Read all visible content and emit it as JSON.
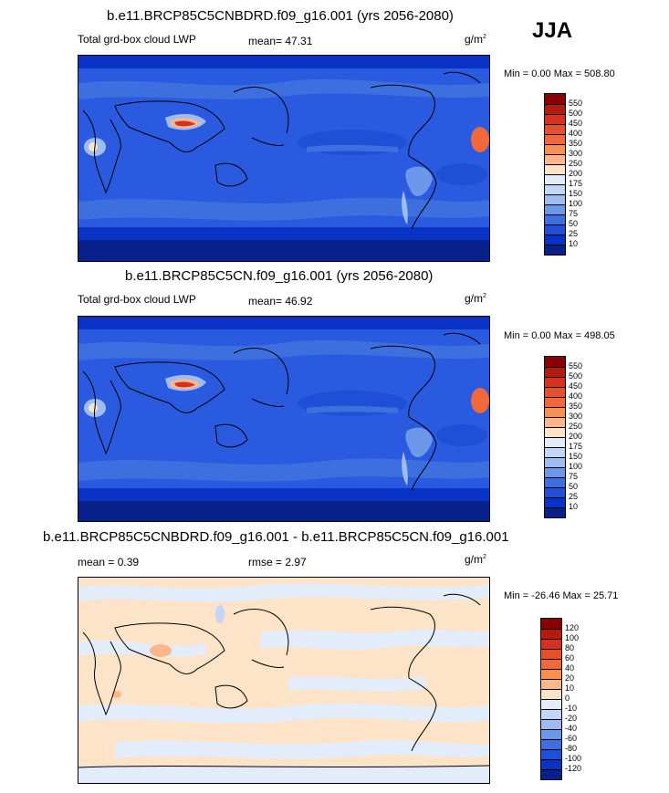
{
  "season": "JJA",
  "panels": [
    {
      "title": "b.e11.BRCP85C5CNBDRD.f09_g16.001 (yrs 2056-2080)",
      "left_label": "Total grd-box cloud LWP",
      "stat_label": "mean=",
      "stat_value": "47.31",
      "units": "g/m",
      "units_sup": "2",
      "minmax": "Min =   0.00 Max = 508.80",
      "colorbar": {
        "labels": [
          "550",
          "500",
          "450",
          "400",
          "350",
          "300",
          "250",
          "200",
          "175",
          "150",
          "100",
          "75",
          "50",
          "25",
          "10"
        ],
        "colors": [
          "#8b0000",
          "#b51b0a",
          "#d7301f",
          "#e8502b",
          "#f1683a",
          "#f8904f",
          "#fcb88c",
          "#fde3c8",
          "#e3ecfb",
          "#c3d6f7",
          "#9ebcf2",
          "#6d98ea",
          "#3e6fdf",
          "#1f4fd6",
          "#0a32c4",
          "#08208a"
        ]
      }
    },
    {
      "title": "b.e11.BRCP85C5CN.f09_g16.001 (yrs 2056-2080)",
      "left_label": "Total grd-box cloud LWP",
      "stat_label": "mean=",
      "stat_value": "46.92",
      "units": "g/m",
      "units_sup": "2",
      "minmax": "Min =   0.00 Max = 498.05",
      "colorbar": {
        "labels": [
          "550",
          "500",
          "450",
          "400",
          "350",
          "300",
          "250",
          "200",
          "175",
          "150",
          "100",
          "75",
          "50",
          "25",
          "10"
        ],
        "colors": [
          "#8b0000",
          "#b51b0a",
          "#d7301f",
          "#e8502b",
          "#f1683a",
          "#f8904f",
          "#fcb88c",
          "#fde3c8",
          "#e3ecfb",
          "#c3d6f7",
          "#9ebcf2",
          "#6d98ea",
          "#3e6fdf",
          "#1f4fd6",
          "#0a32c4",
          "#08208a"
        ]
      }
    },
    {
      "title": "b.e11.BRCP85C5CNBDRD.f09_g16.001 - b.e11.BRCP85C5CN.f09_g16.001",
      "left_label": "mean =   0.39",
      "stat_label": "rmse =",
      "stat_value": "2.97",
      "units": "g/m",
      "units_sup": "2",
      "minmax": "Min = -26.46 Max =  25.71",
      "colorbar": {
        "labels": [
          "120",
          "100",
          "80",
          "60",
          "40",
          "20",
          "10",
          "0",
          "-10",
          "-20",
          "-40",
          "-60",
          "-80",
          "-100",
          "-120"
        ],
        "colors": [
          "#8b0000",
          "#b51b0a",
          "#d7301f",
          "#e8502b",
          "#f1683a",
          "#f8904f",
          "#fcb88c",
          "#fde3c8",
          "#e3ecfb",
          "#c3d6f7",
          "#9ebcf2",
          "#6d98ea",
          "#3e6fdf",
          "#1f4fd6",
          "#0a32c4",
          "#08208a"
        ]
      }
    }
  ]
}
